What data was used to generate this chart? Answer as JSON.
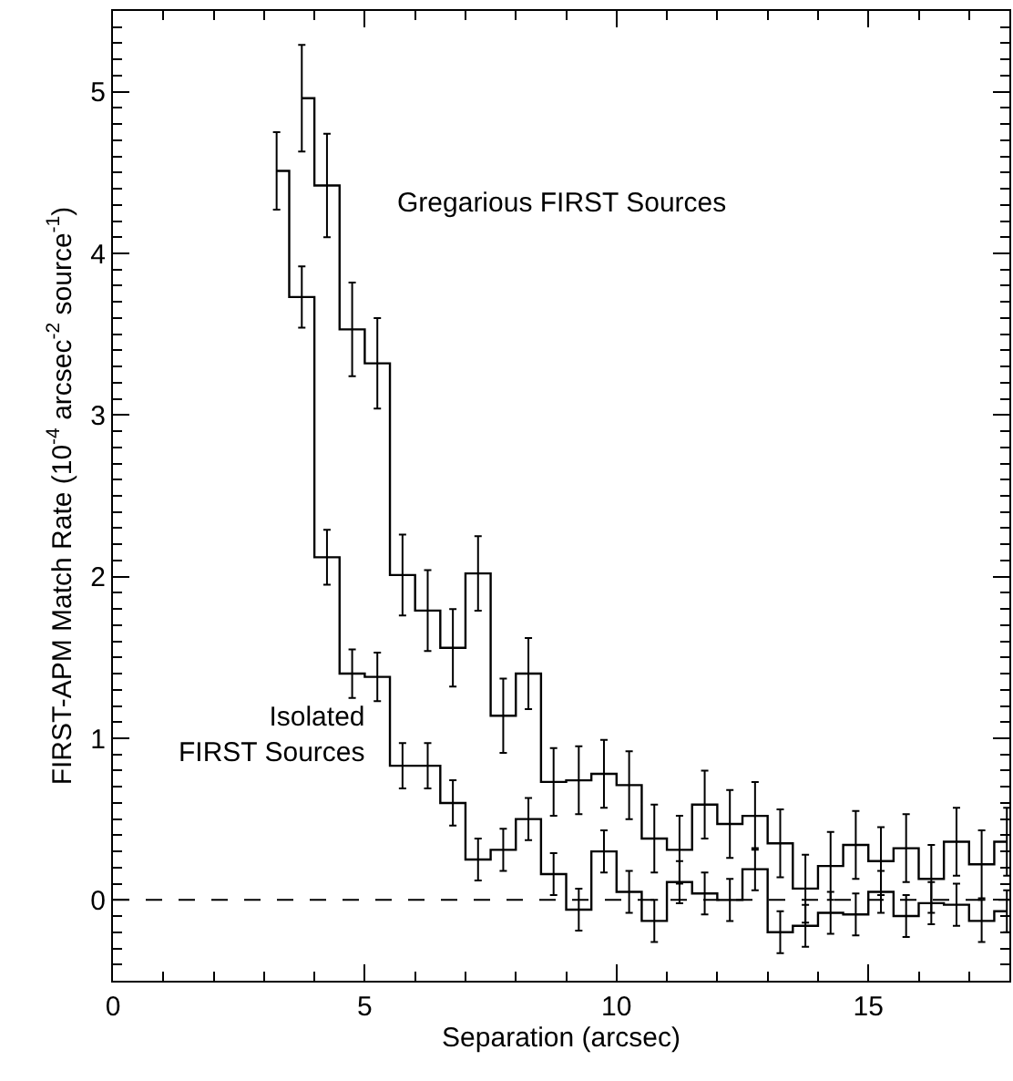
{
  "chart_data": {
    "type": "step",
    "xlabel": "Separation (arcsec)",
    "ylabel": "FIRST-APM Match Rate (10$^{-4}$ arcsec$^{-2}$ source$^{-1}$)",
    "x": [
      3.25,
      3.75,
      4.25,
      4.75,
      5.25,
      5.75,
      6.25,
      6.75,
      7.25,
      7.75,
      8.25,
      8.75,
      9.25,
      9.75,
      10.25,
      10.75,
      11.25,
      11.75,
      12.25,
      12.75,
      13.25,
      13.75,
      14.25,
      14.75,
      15.25,
      15.75,
      16.25,
      16.75,
      17.25,
      17.75
    ],
    "series": [
      {
        "name": "Gregarious FIRST Sources",
        "color": "#000000",
        "values": [
          null,
          4.96,
          4.42,
          3.53,
          3.32,
          2.01,
          1.79,
          1.56,
          2.02,
          1.14,
          1.4,
          0.73,
          0.74,
          0.78,
          0.71,
          0.38,
          0.31,
          0.59,
          0.47,
          0.52,
          0.35,
          0.07,
          0.21,
          0.34,
          0.24,
          0.32,
          0.13,
          0.36,
          0.22,
          0.36
        ],
        "errors": [
          null,
          0.33,
          0.32,
          0.29,
          0.28,
          0.25,
          0.25,
          0.24,
          0.23,
          0.23,
          0.22,
          0.21,
          0.21,
          0.21,
          0.21,
          0.21,
          0.21,
          0.21,
          0.21,
          0.21,
          0.21,
          0.21,
          0.21,
          0.21,
          0.21,
          0.21,
          0.21,
          0.21,
          0.21,
          0.21
        ]
      },
      {
        "name": "Isolated\nFIRST Sources",
        "color": "#000000",
        "values": [
          4.51,
          3.73,
          2.12,
          1.4,
          1.38,
          0.83,
          0.83,
          0.6,
          0.25,
          0.31,
          0.5,
          0.16,
          -0.06,
          0.3,
          0.05,
          -0.13,
          0.11,
          0.04,
          0.0,
          0.19,
          -0.2,
          -0.16,
          -0.08,
          -0.09,
          0.05,
          -0.1,
          -0.02,
          -0.03,
          -0.13,
          -0.07
        ],
        "errors": [
          0.24,
          0.19,
          0.17,
          0.15,
          0.15,
          0.14,
          0.14,
          0.14,
          0.13,
          0.13,
          0.13,
          0.13,
          0.13,
          0.13,
          0.13,
          0.13,
          0.13,
          0.13,
          0.13,
          0.13,
          0.13,
          0.13,
          0.13,
          0.13,
          0.13,
          0.13,
          0.13,
          0.13,
          0.13,
          0.13
        ]
      }
    ],
    "ref_lines": [
      {
        "axis": "y",
        "value": 0,
        "line_style": "dashed",
        "color": "#000000"
      }
    ],
    "xlim": [
      0,
      17.8
    ],
    "xticks": [
      0,
      5,
      10,
      15
    ],
    "ylim": [
      -0.5,
      5.5
    ],
    "yticks": [
      0,
      1,
      2,
      3,
      4,
      5
    ],
    "legend": false,
    "marker": "none",
    "line_style": "solid"
  }
}
